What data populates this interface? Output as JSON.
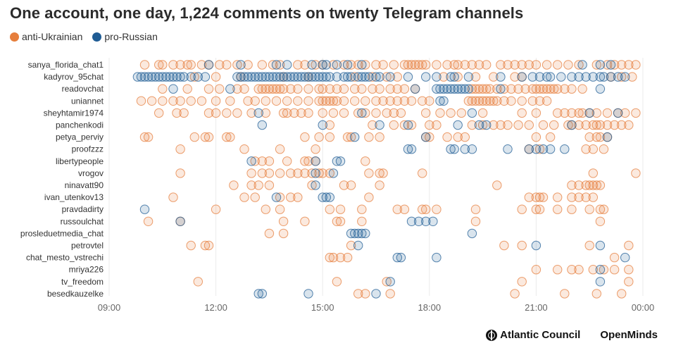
{
  "title": "One account, one day, 1,224 comments on twenty Telegram channels",
  "legend": [
    {
      "label": "anti-Ukrainian",
      "color": "#E67E3C"
    },
    {
      "label": "pro-Russian",
      "color": "#1F5C94"
    }
  ],
  "logos": {
    "atlantic_council": "Atlantic Council",
    "openminds": "OpenMinds"
  },
  "chart_data": {
    "type": "scatter",
    "x_axis": {
      "range_hours": [
        9,
        24
      ],
      "ticks": [
        "09:00",
        "12:00",
        "15:00",
        "18:00",
        "21:00",
        "00:00"
      ]
    },
    "categories": [
      "sanya_florida_chat1",
      "kadyrov_95chat",
      "readovchat",
      "uniannet",
      "sheyhtamir1974",
      "panchenkodi",
      "petya_perviy",
      "proofzzz",
      "libertypeople",
      "vrogov",
      "ninavatt90",
      "ivan_utenkov13",
      "pravdadirty",
      "russoulchat",
      "prosleduetmedia_chat",
      "petrovtel",
      "chat_mesto_vstrechi",
      "mriya226",
      "tv_freedom",
      "besedkauzelke"
    ],
    "series": [
      {
        "name": "anti-Ukrainian",
        "color": "#E67E3C",
        "points": [
          [
            "sanya_florida_chat1",
            [
              10.0,
              10.4,
              10.5,
              10.8,
              11.0,
              11.2,
              11.3,
              11.6,
              11.8,
              12.1,
              12.3,
              12.6,
              12.9,
              13.3,
              13.6,
              13.8,
              14.3,
              14.5,
              14.8,
              15.0,
              15.3,
              15.6,
              15.8,
              16.0,
              16.2,
              16.5,
              16.7,
              17.0,
              17.3,
              17.4,
              17.5,
              17.6,
              17.7,
              17.8,
              17.9,
              18.2,
              18.5,
              18.7,
              18.8,
              19.0,
              19.2,
              19.4,
              19.6,
              20.0,
              20.2,
              20.4,
              20.6,
              20.8,
              21.0,
              21.3,
              21.6,
              21.9,
              22.2,
              22.7,
              23.0,
              23.2,
              23.4,
              23.6,
              23.8
            ]
          ],
          [
            "kadyrov_95chat",
            [
              11.4,
              12.0,
              12.7,
              13.9,
              14.6,
              15.9,
              16.4,
              16.8,
              17.1,
              18.4,
              18.8,
              19.3,
              19.8,
              20.4,
              20.6,
              23.1,
              23.4,
              23.7
            ]
          ],
          [
            "readovchat",
            [
              10.5,
              11.2,
              11.8,
              12.1,
              12.6,
              12.8,
              13.2,
              13.3,
              13.4,
              13.5,
              13.6,
              13.7,
              13.8,
              13.9,
              14.1,
              14.3,
              14.6,
              14.9,
              15.0,
              15.2,
              15.4,
              15.6,
              15.9,
              16.1,
              16.4,
              16.6,
              16.9,
              17.1,
              17.3,
              17.6,
              19.2,
              19.3,
              19.4,
              19.5,
              19.6,
              19.7,
              19.9,
              20.1,
              20.3,
              20.5,
              20.7,
              20.9,
              21.0,
              21.1,
              21.2,
              21.3,
              21.4,
              21.5,
              21.6,
              21.8,
              22.0,
              22.3
            ]
          ],
          [
            "uniannet",
            [
              9.9,
              10.2,
              10.5,
              10.8,
              11.0,
              11.3,
              11.6,
              12.0,
              12.4,
              12.9,
              13.1,
              13.4,
              13.7,
              14.0,
              14.3,
              14.6,
              14.9,
              15.0,
              15.1,
              15.2,
              15.3,
              15.4,
              15.6,
              15.9,
              16.2,
              16.5,
              16.7,
              16.9,
              17.1,
              17.3,
              17.5,
              17.8,
              18.0,
              19.1,
              19.2,
              19.3,
              19.4,
              19.5,
              19.6,
              19.7,
              19.8,
              19.9,
              20.1,
              20.3,
              20.6,
              20.9,
              21.1,
              21.3
            ]
          ],
          [
            "sheyhtamir1974",
            [
              10.4,
              10.9,
              11.1,
              11.8,
              12.0,
              12.3,
              12.6,
              13.0,
              13.4,
              13.9,
              14.0,
              14.2,
              14.4,
              14.6,
              15.0,
              15.3,
              15.6,
              16.0,
              16.2,
              16.5,
              16.8,
              17.0,
              17.2,
              17.9,
              18.3,
              18.6,
              18.9,
              19.5,
              20.6,
              21.0,
              21.6,
              21.8,
              22.0,
              22.2,
              22.3,
              22.5,
              22.7,
              23.0,
              23.3,
              23.5,
              23.8
            ]
          ],
          [
            "panchenkodi",
            [
              15.2,
              16.4,
              17.0,
              17.3,
              17.5,
              18.0,
              18.2,
              19.2,
              19.5,
              19.8,
              20.0,
              20.2,
              20.5,
              20.8,
              21.2,
              21.5,
              21.9,
              22.0,
              22.2,
              22.4,
              22.6,
              22.7,
              22.8,
              23.0,
              23.2,
              23.4,
              23.6
            ]
          ],
          [
            "petya_perviy",
            [
              10.0,
              10.1,
              11.4,
              11.7,
              11.8,
              12.3,
              12.4,
              14.5,
              14.9,
              15.2,
              15.7,
              15.8,
              16.3,
              16.6,
              17.9,
              18.0,
              18.5,
              18.8,
              19.0,
              21.0,
              21.4,
              22.5,
              22.7,
              22.8,
              23.0
            ]
          ],
          [
            "proofzzz",
            [
              11.0,
              12.8,
              13.8,
              14.8,
              20.8,
              21.1,
              22.4,
              22.6,
              22.9
            ]
          ],
          [
            "libertypeople",
            [
              13.1,
              13.3,
              13.5,
              14.0,
              14.5,
              14.6,
              14.8,
              16.2
            ]
          ],
          [
            "vrogov",
            [
              11.0,
              13.0,
              13.3,
              13.5,
              13.8,
              14.1,
              14.3,
              14.5,
              14.7,
              14.9,
              15.0,
              15.2,
              16.3,
              16.6,
              16.7,
              17.8,
              22.6,
              23.8
            ]
          ],
          [
            "ninavatt90",
            [
              12.5,
              13.0,
              13.2,
              13.5,
              14.7,
              15.6,
              15.8,
              16.6,
              19.9,
              22.0,
              22.2,
              22.4,
              22.5,
              22.6,
              22.7,
              22.8
            ]
          ],
          [
            "ivan_utenkov13",
            [
              10.8,
              12.8,
              13.1,
              13.8,
              14.1,
              14.3,
              16.3,
              20.8,
              21.0,
              21.1,
              21.2,
              21.6,
              22.0,
              22.2,
              22.4,
              22.6
            ]
          ],
          [
            "pravdadirty",
            [
              12.0,
              13.4,
              13.8,
              15.2,
              15.5,
              16.1,
              17.1,
              17.3,
              17.8,
              17.9,
              18.2,
              19.3,
              20.6,
              21.0,
              21.1,
              21.6,
              22.0,
              22.5,
              22.8,
              22.9
            ]
          ],
          [
            "russoulchat",
            [
              10.1,
              11.0,
              13.9,
              14.5,
              15.4,
              15.5,
              16.1,
              19.3,
              22.8
            ]
          ],
          [
            "prosleduetmedia_chat",
            [
              13.5,
              13.9
            ]
          ],
          [
            "petrovtel",
            [
              11.3,
              11.7,
              11.8,
              15.8,
              20.1,
              20.6,
              22.5,
              23.6
            ]
          ],
          [
            "chat_mesto_vstrechi",
            [
              15.2,
              15.3,
              15.5,
              15.7,
              23.2
            ]
          ],
          [
            "mriya226",
            [
              21.0,
              21.6,
              22.0,
              22.2,
              22.6,
              22.9,
              23.2,
              23.6
            ]
          ],
          [
            "tv_freedom",
            [
              11.5,
              15.4,
              16.8,
              20.6,
              23.6
            ]
          ],
          [
            "besedkauzelke",
            [
              16.0,
              16.2,
              16.9,
              20.4,
              21.8,
              22.7,
              23.4
            ]
          ]
        ]
      },
      {
        "name": "pro-Russian",
        "color": "#1F5C94",
        "points": [
          [
            "sanya_florida_chat1",
            [
              11.8,
              12.7,
              13.7,
              14.0,
              14.7,
              15.0,
              15.1,
              15.4,
              15.7,
              16.1,
              22.3,
              22.8,
              23.1
            ]
          ],
          [
            "kadyrov_95chat",
            [
              9.8,
              9.9,
              10.0,
              10.1,
              10.2,
              10.3,
              10.4,
              10.5,
              10.6,
              10.7,
              10.8,
              10.9,
              11.0,
              11.1,
              11.3,
              11.5,
              11.7,
              12.6,
              12.7,
              12.8,
              12.9,
              13.0,
              13.1,
              13.2,
              13.3,
              13.4,
              13.5,
              13.6,
              13.7,
              13.8,
              13.9,
              14.0,
              14.1,
              14.2,
              14.3,
              14.4,
              14.5,
              14.6,
              14.7,
              14.8,
              14.9,
              15.0,
              15.1,
              15.2,
              15.4,
              15.6,
              15.7,
              15.8,
              16.0,
              16.1,
              16.2,
              16.3,
              16.5,
              16.6,
              16.9,
              17.4,
              17.9,
              18.2,
              18.6,
              18.7,
              19.1,
              20.0,
              20.6,
              20.9,
              21.1,
              21.3,
              21.4,
              21.7,
              22.0,
              22.2,
              22.4,
              22.6,
              22.8,
              22.9,
              23.1,
              23.3,
              23.5
            ]
          ],
          [
            "readovchat",
            [
              10.8,
              12.4,
              17.6,
              18.2,
              18.3,
              18.4,
              18.5,
              18.6,
              18.7,
              18.8,
              18.9,
              19.0,
              19.1,
              20.0,
              22.8
            ]
          ],
          [
            "uniannet",
            [
              18.3,
              18.4
            ]
          ],
          [
            "sheyhtamir1974",
            [
              13.2,
              16.1,
              19.2,
              22.5,
              23.3
            ]
          ],
          [
            "panchenkodi",
            [
              13.3,
              15.0,
              16.6,
              17.4,
              18.8,
              19.4,
              19.6,
              22.0
            ]
          ],
          [
            "petya_perviy",
            [
              15.9,
              17.9,
              23.0
            ]
          ],
          [
            "proofzzz",
            [
              17.4,
              17.5,
              18.6,
              18.7,
              19.0,
              19.2,
              20.2,
              20.8,
              21.0,
              21.2,
              21.4,
              21.8
            ]
          ],
          [
            "libertypeople",
            [
              13.0,
              14.8,
              15.4,
              15.5
            ]
          ],
          [
            "vrogov",
            [
              14.8,
              15.3
            ]
          ],
          [
            "ninavatt90",
            [
              14.8
            ]
          ],
          [
            "ivan_utenkov13",
            [
              13.7,
              15.0,
              15.1,
              15.2
            ]
          ],
          [
            "pravdadirty",
            [
              10.0
            ]
          ],
          [
            "russoulchat",
            [
              11.0,
              17.5,
              17.7,
              17.9,
              18.1
            ]
          ],
          [
            "prosleduetmedia_chat",
            [
              15.8,
              15.9,
              16.0,
              16.1,
              16.2,
              19.2
            ]
          ],
          [
            "petrovtel",
            [
              16.0,
              21.0,
              22.8
            ]
          ],
          [
            "chat_mesto_vstrechi",
            [
              17.1,
              17.2,
              18.2,
              23.5
            ]
          ],
          [
            "mriya226",
            [
              22.8
            ]
          ],
          [
            "tv_freedom",
            [
              16.9,
              22.8
            ]
          ],
          [
            "besedkauzelke",
            [
              13.2,
              13.3,
              14.6,
              16.5
            ]
          ]
        ]
      }
    ]
  }
}
